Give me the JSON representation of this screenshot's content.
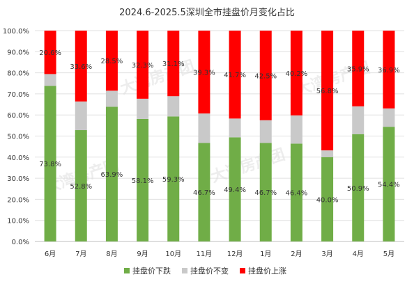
{
  "chart_data": {
    "type": "bar",
    "stacked": true,
    "title": "2024.6-2025.5深圳全市挂盘价月变化占比",
    "categories": [
      "6月",
      "7月",
      "8月",
      "9月",
      "10月",
      "11月",
      "12月",
      "1月",
      "2月",
      "3月",
      "4月",
      "5月"
    ],
    "series": [
      {
        "name": "挂盘价下跌",
        "color": "#70ad47",
        "values": [
          73.8,
          52.8,
          63.9,
          58.1,
          59.3,
          46.7,
          49.4,
          46.7,
          46.4,
          40.0,
          50.9,
          54.4
        ],
        "labels": [
          "73.8%",
          "52.8%",
          "63.9%",
          "58.1%",
          "59.3%",
          "46.7%",
          "49.4%",
          "46.7%",
          "46.4%",
          "40.0%",
          "50.9%",
          "54.4%"
        ]
      },
      {
        "name": "挂盘价不变",
        "color": "#c9c9c9",
        "values": [
          5.6,
          13.6,
          7.6,
          9.6,
          9.6,
          14.0,
          8.9,
          10.8,
          13.4,
          3.2,
          13.2,
          8.7
        ]
      },
      {
        "name": "挂盘价上涨",
        "color": "#ff0000",
        "values": [
          20.6,
          33.6,
          28.5,
          32.3,
          31.1,
          39.3,
          41.7,
          42.5,
          40.2,
          56.8,
          35.9,
          36.9
        ],
        "labels": [
          "20.6%",
          "33.6%",
          "28.5%",
          "32.3%",
          "31.1%",
          "39.3%",
          "41.7%",
          "42.5%",
          "40.2%",
          "56.8%",
          "35.9%",
          "36.9%"
        ]
      }
    ],
    "ylim": [
      0,
      100
    ],
    "y_ticks": [
      "0.0%",
      "10.0%",
      "20.0%",
      "30.0%",
      "40.0%",
      "50.0%",
      "60.0%",
      "70.0%",
      "80.0%",
      "90.0%",
      "100.0%"
    ],
    "grid": true,
    "legend_position": "bottom",
    "watermark": "大湾房产团"
  }
}
